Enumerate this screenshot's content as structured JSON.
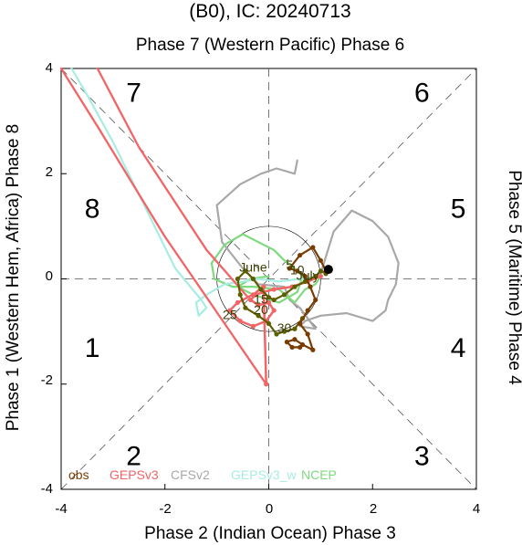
{
  "chart_data": {
    "type": "line",
    "title": "(B0), IC: 20240713",
    "top_label": "Phase 7 (Western Pacific) Phase 6",
    "xlabel": "Phase 2 (Indian Ocean) Phase 3",
    "ylabel_left": "Phase 1 (Western Hem, Africa) Phase 8",
    "ylabel_right": "Phase 5 (Maritime) Phase 4",
    "xlim": [
      -4,
      4
    ],
    "ylim": [
      -4,
      4
    ],
    "xticks": [
      "-4",
      "-2",
      "0",
      "2",
      "4"
    ],
    "yticks": [
      "4",
      "2",
      "0",
      "-2",
      "-4"
    ],
    "phase_numbers": [
      {
        "label": "7",
        "x": -2.6,
        "y": 3.5
      },
      {
        "label": "6",
        "x": 2.95,
        "y": 3.5
      },
      {
        "label": "8",
        "x": -3.4,
        "y": 1.3
      },
      {
        "label": "5",
        "x": 3.65,
        "y": 1.3
      },
      {
        "label": "1",
        "x": -3.4,
        "y": -1.35
      },
      {
        "label": "4",
        "x": 3.65,
        "y": -1.35
      },
      {
        "label": "2",
        "x": -2.6,
        "y": -3.4
      },
      {
        "label": "3",
        "x": 2.95,
        "y": -3.4
      }
    ],
    "unit_circle_radius": 1,
    "legend": {
      "position": "bottom-left",
      "entries": [
        {
          "name": "obs",
          "color": "#7a3b00"
        },
        {
          "name": "GEPSv3",
          "color": "#f26465"
        },
        {
          "name": "CFSv2",
          "color": "#a8a8a8"
        },
        {
          "name": "GEPSv3_w",
          "color": "#a8ece2"
        },
        {
          "name": "NCEP",
          "color": "#7fd97f"
        }
      ]
    },
    "annotations": [
      {
        "text": "June",
        "x": -0.3,
        "y": 0.2,
        "color": "#3d3d00"
      },
      {
        "text": "5",
        "x": 0.4,
        "y": 0.25,
        "color": "#3d3d00"
      },
      {
        "text": "10",
        "x": 0.55,
        "y": 0.15,
        "color": "#3d3d00"
      },
      {
        "text": "July",
        "x": 0.75,
        "y": 0.05,
        "color": "#3d3d00"
      },
      {
        "text": "15",
        "x": -0.15,
        "y": -0.4,
        "color": "#3d3d00"
      },
      {
        "text": "20",
        "x": -0.15,
        "y": -0.6,
        "color": "#3d3d00"
      },
      {
        "text": "25",
        "x": -0.75,
        "y": -0.7,
        "color": "#3d3d00"
      },
      {
        "text": "30",
        "x": 0.3,
        "y": -0.95,
        "color": "#3d3d00"
      }
    ],
    "series": [
      {
        "name": "CFSv2",
        "color": "#a8a8a8",
        "width": 2.2,
        "markers": false,
        "x": [
          1.0,
          1.25,
          1.6,
          2.0,
          2.3,
          2.5,
          2.45,
          2.3,
          2.25,
          2.0,
          1.5,
          1.0,
          0.7,
          0.6,
          0.9,
          0.6,
          0.4,
          0.3,
          -0.2,
          -0.5,
          -0.9,
          -1.0,
          -0.55,
          -0.15,
          0.15,
          0.5,
          0.55
        ],
        "y": [
          0.1,
          0.9,
          1.3,
          1.1,
          0.8,
          0.3,
          -0.1,
          -0.4,
          -0.6,
          -0.8,
          -0.65,
          -0.7,
          -0.8,
          -0.9,
          -0.95,
          -0.55,
          -0.4,
          -0.15,
          -0.1,
          0.2,
          0.7,
          1.4,
          1.8,
          2.0,
          2.1,
          2.0,
          2.25
        ]
      },
      {
        "name": "NCEP",
        "color": "#7fd97f",
        "width": 2.2,
        "markers": false,
        "x": [
          1.0,
          0.9,
          0.7,
          0.5,
          0.2,
          -0.3,
          -0.7,
          -1.05,
          -1.1,
          -0.85,
          -0.5,
          -0.2,
          0.1,
          0.3,
          0.5,
          0.65,
          0.55,
          0.2,
          -0.3,
          -0.6,
          -0.35,
          0.0
        ],
        "y": [
          0.05,
          -0.1,
          -0.2,
          -0.45,
          -0.2,
          -0.15,
          -0.15,
          0.0,
          0.3,
          0.65,
          0.85,
          0.7,
          0.55,
          0.35,
          0.2,
          0.05,
          -0.25,
          -0.45,
          -0.3,
          -0.15,
          0.0,
          0.05
        ]
      },
      {
        "name": "GEPSv3_w",
        "color": "#a8ece2",
        "width": 2.2,
        "markers": false,
        "x": [
          1.0,
          0.6,
          0.2,
          -0.2,
          -0.5,
          -0.85,
          -1.2,
          -1.4,
          -1.35,
          -1.2,
          -1.3,
          -1.55,
          -1.8,
          -2.4,
          -3.0,
          -3.5,
          -3.8
        ],
        "y": [
          0.05,
          0.0,
          -0.05,
          0.0,
          -0.05,
          -0.1,
          -0.3,
          -0.45,
          -0.7,
          -0.55,
          -0.4,
          -0.1,
          0.2,
          1.4,
          2.6,
          3.5,
          4.0
        ]
      },
      {
        "name": "GEPSv3",
        "color": "#f26465",
        "width": 2.5,
        "markers": true,
        "x": [
          1.0,
          0.75,
          0.45,
          0.1,
          -0.1,
          -0.25,
          -0.35,
          -0.2,
          0.0,
          0.1,
          -0.05,
          -0.3,
          -0.55,
          -0.75,
          -0.6,
          -0.3,
          -0.1,
          -0.05
        ],
        "y": [
          0.05,
          -0.05,
          -0.15,
          -0.2,
          -0.25,
          -0.3,
          -0.4,
          -0.5,
          -0.45,
          -0.6,
          -0.8,
          -0.9,
          -0.8,
          -0.6,
          -0.45,
          -0.3,
          -0.15,
          -2.0
        ]
      },
      {
        "name": "GEPSv3_ext1",
        "color": "#f26465",
        "width": 2.3,
        "markers": false,
        "x": [
          -0.05,
          -2.0,
          -3.3,
          -4.0
        ],
        "y": [
          -2.0,
          0.8,
          2.9,
          4.0
        ]
      },
      {
        "name": "GEPSv3_ext2",
        "color": "#f26465",
        "width": 2.3,
        "markers": false,
        "x": [
          -0.4,
          -1.2,
          -2.5,
          -3.3
        ],
        "y": [
          -0.35,
          0.55,
          2.5,
          4.0
        ]
      },
      {
        "name": "NCEP_lower",
        "color": "#5e5e00",
        "width": 2.2,
        "markers": true,
        "x": [
          1.1,
          1.0,
          0.9,
          0.7,
          0.5,
          0.3,
          0.1,
          0.0,
          -0.15,
          -0.3,
          -0.45,
          -0.6,
          -0.55,
          -0.45,
          -0.2,
          0.0,
          0.15,
          0.3,
          0.5,
          0.65
        ],
        "y": [
          0.1,
          0.15,
          0.05,
          -0.05,
          -0.15,
          -0.3,
          -0.4,
          -0.35,
          -0.2,
          0.0,
          0.15,
          0.0,
          -0.3,
          -0.55,
          -0.7,
          -0.85,
          -1.05,
          -1.0,
          -0.95,
          -0.75
        ]
      },
      {
        "name": "obs",
        "color": "#7a3b00",
        "width": 2.2,
        "markers": true,
        "x": [
          1.1,
          1.0,
          0.85,
          0.6,
          0.4,
          0.55,
          0.7,
          0.8,
          0.9,
          0.75,
          0.6,
          0.75,
          0.85,
          0.65,
          0.5,
          0.35,
          0.45,
          0.6
        ],
        "y": [
          0.15,
          0.35,
          0.6,
          0.45,
          0.2,
          0.15,
          0.05,
          -0.15,
          -0.4,
          -0.6,
          -0.85,
          -1.05,
          -1.35,
          -1.25,
          -1.15,
          -1.2,
          -1.3,
          -1.3
        ]
      }
    ],
    "ic_point": {
      "x": 1.15,
      "y": 0.18
    },
    "grid": false
  }
}
